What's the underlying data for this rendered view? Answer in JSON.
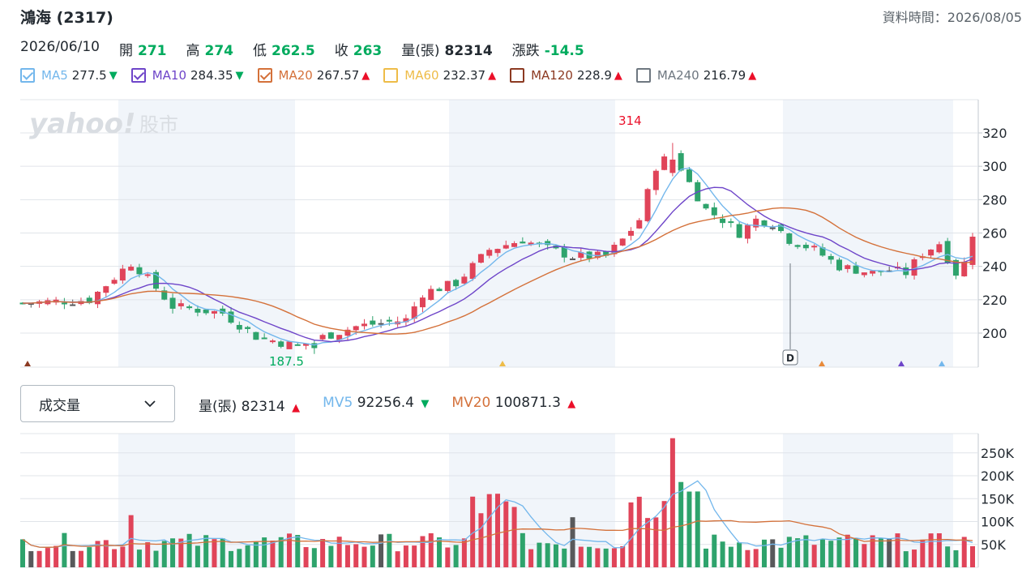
{
  "header": {
    "title": "鴻海 (2317)",
    "data_time": "資料時間：2026/08/05"
  },
  "quote": {
    "date": "2026/06/10",
    "open_label": "開",
    "open": "271",
    "high_label": "高",
    "high": "274",
    "low_label": "低",
    "low": "262.5",
    "close_label": "收",
    "close": "263",
    "volume_label": "量(張)",
    "volume": "82314",
    "change_label": "漲跌",
    "change": "-14.5"
  },
  "ma": [
    {
      "name": "MA5",
      "value": "277.5",
      "dir": "down",
      "checked": true,
      "color": "#73b7ec"
    },
    {
      "name": "MA10",
      "value": "284.35",
      "dir": "down",
      "checked": true,
      "color": "#6e45c9"
    },
    {
      "name": "MA20",
      "value": "267.57",
      "dir": "up",
      "checked": true,
      "color": "#d4713a"
    },
    {
      "name": "MA60",
      "value": "232.37",
      "dir": "up",
      "checked": false,
      "color": "#eebc48"
    },
    {
      "name": "MA120",
      "value": "228.9",
      "dir": "up",
      "checked": false,
      "color": "#8c3a22"
    },
    {
      "name": "MA240",
      "value": "216.79",
      "dir": "up",
      "checked": false,
      "color": "#6e7780"
    }
  ],
  "colors": {
    "up": "#e04459",
    "down": "#2ea36c",
    "flat": "#58595b",
    "shade": "#f1f5fa",
    "grid": "#e0e4e9"
  },
  "watermark": {
    "brand": "yahoo!",
    "section": "股市"
  },
  "price_chart": {
    "y_ticks": [
      "320",
      "300",
      "280",
      "260",
      "240",
      "220",
      "200"
    ],
    "high_label": "314",
    "low_label": "187.5",
    "event_badge": "D"
  },
  "volume_selector": {
    "label": "成交量"
  },
  "volume_legend": {
    "vol_label": "量(張)",
    "vol_value": "82314",
    "mv5_label": "MV5",
    "mv5_value": "92256.4",
    "mv20_label": "MV20",
    "mv20_value": "100871.3"
  },
  "volume_chart": {
    "y_ticks": [
      "250K",
      "200K",
      "150K",
      "100K",
      "50K"
    ]
  }
}
